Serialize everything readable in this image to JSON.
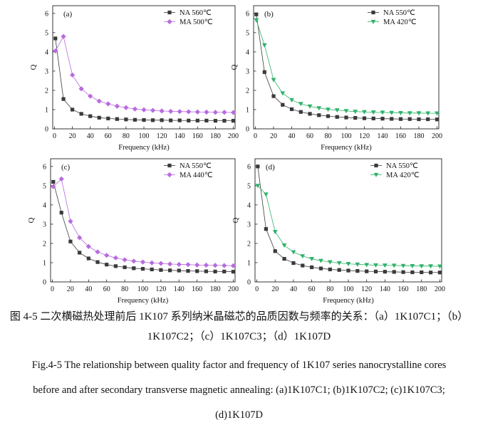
{
  "figure": {
    "caption_cn_line1": "图 4-5 二次横磁热处理前后 1K107 系列纳米晶磁芯的品质因数与频率的关系：（a）1K107C1；（b）",
    "caption_cn_line2": "1K107C2；（c）1K107C3；（d）1K107D",
    "caption_en_line1": "Fig.4-5 The relationship between quality factor and frequency of 1K107 series nanocrystalline cores",
    "caption_en_line2": "before and after secondary transverse magnetic annealing: (a)1K107C1; (b)1K107C2; (c)1K107C3;",
    "caption_en_line3": "(d)1K107D"
  },
  "colors": {
    "na": "#3a3a3a",
    "ma_a": "#b86be0",
    "ma_b": "#2fb36b",
    "ma_c": "#b86be0",
    "ma_d": "#2fb36b"
  },
  "chart_data": [
    {
      "panel": "(a)",
      "type": "line",
      "xlabel": "Frequency (kHz)",
      "ylabel": "Q",
      "xlim": [
        -2,
        202
      ],
      "ylim": [
        0,
        6.4
      ],
      "xticks": [
        0,
        20,
        40,
        60,
        80,
        100,
        120,
        140,
        160,
        180,
        200
      ],
      "yticks": [
        0,
        1,
        2,
        3,
        4,
        5,
        6
      ],
      "legend_position": "top-right",
      "series": [
        {
          "name": "NA 560℃",
          "marker": "square",
          "color": "#3a3a3a",
          "x": [
            1,
            10,
            20,
            30,
            40,
            50,
            60,
            70,
            80,
            90,
            100,
            110,
            120,
            130,
            140,
            150,
            160,
            170,
            180,
            190,
            200
          ],
          "y": [
            4.7,
            1.55,
            1.0,
            0.78,
            0.66,
            0.58,
            0.54,
            0.51,
            0.49,
            0.47,
            0.46,
            0.45,
            0.45,
            0.44,
            0.44,
            0.43,
            0.43,
            0.43,
            0.42,
            0.42,
            0.42
          ]
        },
        {
          "name": "MA 500℃",
          "marker": "diamond",
          "color": "#b86be0",
          "x": [
            1,
            10,
            20,
            30,
            40,
            50,
            60,
            70,
            80,
            90,
            100,
            110,
            120,
            130,
            140,
            150,
            160,
            170,
            180,
            190,
            200
          ],
          "y": [
            4.05,
            4.8,
            2.8,
            2.08,
            1.7,
            1.44,
            1.3,
            1.18,
            1.1,
            1.03,
            0.99,
            0.96,
            0.93,
            0.91,
            0.9,
            0.89,
            0.88,
            0.87,
            0.86,
            0.86,
            0.85
          ]
        }
      ]
    },
    {
      "panel": "(b)",
      "type": "line",
      "xlabel": "Frequency (kHz)",
      "ylabel": "Q",
      "xlim": [
        -2,
        202
      ],
      "ylim": [
        0,
        6.4
      ],
      "xticks": [
        0,
        20,
        40,
        60,
        80,
        100,
        120,
        140,
        160,
        180,
        200
      ],
      "yticks": [
        0,
        1,
        2,
        3,
        4,
        5,
        6
      ],
      "legend_position": "top-right",
      "series": [
        {
          "name": "NA 550℃",
          "marker": "square",
          "color": "#3a3a3a",
          "x": [
            1,
            10,
            20,
            30,
            40,
            50,
            60,
            70,
            80,
            90,
            100,
            110,
            120,
            130,
            140,
            150,
            160,
            170,
            180,
            190,
            200
          ],
          "y": [
            5.95,
            2.95,
            1.7,
            1.25,
            1.02,
            0.88,
            0.78,
            0.71,
            0.66,
            0.62,
            0.59,
            0.57,
            0.55,
            0.54,
            0.53,
            0.52,
            0.51,
            0.51,
            0.5,
            0.5,
            0.49
          ]
        },
        {
          "name": "MA 420℃",
          "marker": "triangle-down",
          "color": "#2fb36b",
          "x": [
            1,
            10,
            20,
            30,
            40,
            50,
            60,
            70,
            80,
            90,
            100,
            110,
            120,
            130,
            140,
            150,
            160,
            170,
            180,
            190,
            200
          ],
          "y": [
            5.65,
            4.35,
            2.55,
            1.85,
            1.5,
            1.3,
            1.17,
            1.08,
            1.01,
            0.97,
            0.93,
            0.9,
            0.88,
            0.86,
            0.85,
            0.84,
            0.83,
            0.82,
            0.82,
            0.81,
            0.81
          ]
        }
      ]
    },
    {
      "panel": "(c)",
      "type": "line",
      "xlabel": "Frequency (kHz)",
      "ylabel": "Q",
      "xlim": [
        -2,
        202
      ],
      "ylim": [
        0,
        6.4
      ],
      "xticks": [
        0,
        20,
        40,
        60,
        80,
        100,
        120,
        140,
        160,
        180,
        200
      ],
      "yticks": [
        0,
        1,
        2,
        3,
        4,
        5,
        6
      ],
      "legend_position": "top-right",
      "series": [
        {
          "name": "NA 550℃",
          "marker": "square",
          "color": "#3a3a3a",
          "x": [
            1,
            10,
            20,
            30,
            40,
            50,
            60,
            70,
            80,
            90,
            100,
            110,
            120,
            130,
            140,
            150,
            160,
            170,
            180,
            190,
            200
          ],
          "y": [
            5.2,
            3.6,
            2.1,
            1.52,
            1.22,
            1.03,
            0.9,
            0.82,
            0.76,
            0.71,
            0.68,
            0.65,
            0.62,
            0.6,
            0.59,
            0.57,
            0.56,
            0.55,
            0.54,
            0.54,
            0.53
          ]
        },
        {
          "name": "MA 440℃",
          "marker": "diamond",
          "color": "#b86be0",
          "x": [
            1,
            10,
            20,
            30,
            40,
            50,
            60,
            70,
            80,
            90,
            100,
            110,
            120,
            130,
            140,
            150,
            160,
            170,
            180,
            190,
            200
          ],
          "y": [
            4.95,
            5.35,
            3.15,
            2.3,
            1.84,
            1.56,
            1.38,
            1.25,
            1.15,
            1.08,
            1.03,
            0.99,
            0.96,
            0.93,
            0.91,
            0.9,
            0.88,
            0.87,
            0.86,
            0.85,
            0.84
          ]
        }
      ]
    },
    {
      "panel": "(d)",
      "type": "line",
      "xlabel": "Frequency (kHz)",
      "ylabel": "Q",
      "xlim": [
        -2,
        202
      ],
      "ylim": [
        0,
        6.4
      ],
      "xticks": [
        0,
        20,
        40,
        60,
        80,
        100,
        120,
        140,
        160,
        180,
        200
      ],
      "yticks": [
        0,
        1,
        2,
        3,
        4,
        5,
        6
      ],
      "legend_position": "top-right",
      "series": [
        {
          "name": "NA 550℃",
          "marker": "square",
          "color": "#3a3a3a",
          "x": [
            1,
            10,
            20,
            30,
            40,
            50,
            60,
            70,
            80,
            90,
            100,
            110,
            120,
            130,
            140,
            150,
            160,
            170,
            180,
            190,
            200
          ],
          "y": [
            6.0,
            2.75,
            1.6,
            1.2,
            0.98,
            0.85,
            0.76,
            0.7,
            0.65,
            0.62,
            0.59,
            0.57,
            0.55,
            0.54,
            0.53,
            0.52,
            0.51,
            0.5,
            0.5,
            0.49,
            0.49
          ]
        },
        {
          "name": "MA 420℃",
          "marker": "triangle-down",
          "color": "#2fb36b",
          "x": [
            1,
            10,
            20,
            30,
            40,
            50,
            60,
            70,
            80,
            90,
            100,
            110,
            120,
            130,
            140,
            150,
            160,
            170,
            180,
            190,
            200
          ],
          "y": [
            5.0,
            4.55,
            2.6,
            1.9,
            1.55,
            1.34,
            1.2,
            1.1,
            1.03,
            0.98,
            0.94,
            0.91,
            0.89,
            0.87,
            0.86,
            0.85,
            0.84,
            0.83,
            0.82,
            0.82,
            0.81
          ]
        }
      ]
    }
  ]
}
